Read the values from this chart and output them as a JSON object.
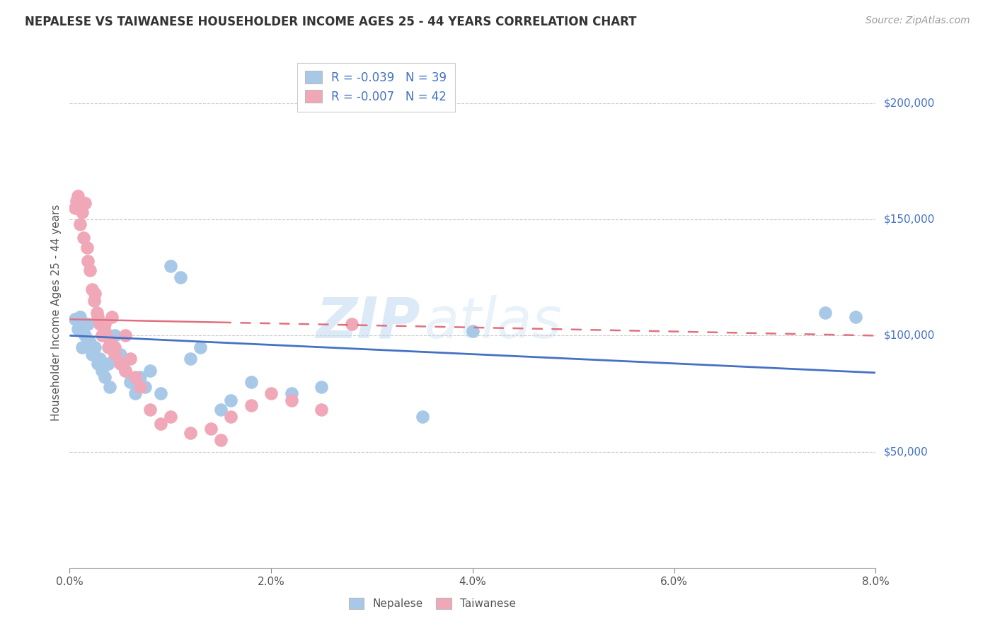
{
  "title": "NEPALESE VS TAIWANESE HOUSEHOLDER INCOME AGES 25 - 44 YEARS CORRELATION CHART",
  "source": "Source: ZipAtlas.com",
  "xlabel_ticks": [
    "0.0%",
    "2.0%",
    "4.0%",
    "6.0%",
    "8.0%"
  ],
  "xlabel_vals": [
    0.0,
    2.0,
    4.0,
    6.0,
    8.0
  ],
  "ylabel_ticks": [
    "$50,000",
    "$100,000",
    "$150,000",
    "$200,000"
  ],
  "ylabel_vals": [
    50000,
    100000,
    150000,
    200000
  ],
  "xlim": [
    0.0,
    8.0
  ],
  "ylim": [
    0,
    220000
  ],
  "nepalese_R": "-0.039",
  "nepalese_N": "39",
  "taiwanese_R": "-0.007",
  "taiwanese_N": "42",
  "nepalese_color": "#a8c8e8",
  "taiwanese_color": "#f0a8b8",
  "nepalese_line_color": "#4472c4",
  "taiwanese_line_color": "#e07080",
  "legend_label_nepalese": "Nepalese",
  "legend_label_taiwanese": "Taiwanese",
  "watermark_zip": "ZIP",
  "watermark_atlas": "atlas",
  "background_color": "#ffffff",
  "ylabel": "Householder Income Ages 25 - 44 years",
  "nepalese_x": [
    0.05,
    0.08,
    0.1,
    0.12,
    0.15,
    0.18,
    0.2,
    0.22,
    0.25,
    0.28,
    0.3,
    0.32,
    0.35,
    0.38,
    0.4,
    0.42,
    0.45,
    0.5,
    0.52,
    0.55,
    0.6,
    0.65,
    0.7,
    0.75,
    0.8,
    0.9,
    1.0,
    1.1,
    1.2,
    1.3,
    1.5,
    1.6,
    1.8,
    2.2,
    2.5,
    3.5,
    4.0,
    7.5,
    7.8
  ],
  "nepalese_y": [
    107000,
    103000,
    108000,
    95000,
    100000,
    105000,
    97000,
    92000,
    95000,
    88000,
    90000,
    85000,
    82000,
    88000,
    78000,
    95000,
    100000,
    92000,
    88000,
    85000,
    80000,
    75000,
    82000,
    78000,
    85000,
    75000,
    130000,
    125000,
    90000,
    95000,
    68000,
    72000,
    80000,
    75000,
    78000,
    65000,
    102000,
    110000,
    108000
  ],
  "taiwanese_x": [
    0.05,
    0.07,
    0.08,
    0.1,
    0.12,
    0.14,
    0.15,
    0.17,
    0.18,
    0.2,
    0.22,
    0.24,
    0.25,
    0.27,
    0.28,
    0.3,
    0.32,
    0.35,
    0.38,
    0.4,
    0.42,
    0.45,
    0.5,
    0.55,
    0.6,
    0.65,
    0.7,
    0.8,
    0.9,
    1.0,
    1.2,
    1.4,
    1.5,
    1.6,
    1.8,
    2.0,
    2.2,
    2.5,
    0.35,
    0.45,
    0.55,
    2.8
  ],
  "taiwanese_y": [
    155000,
    158000,
    160000,
    148000,
    153000,
    142000,
    157000,
    138000,
    132000,
    128000,
    120000,
    115000,
    118000,
    110000,
    108000,
    105000,
    100000,
    102000,
    95000,
    98000,
    108000,
    92000,
    88000,
    85000,
    90000,
    82000,
    78000,
    68000,
    62000,
    65000,
    58000,
    60000,
    55000,
    65000,
    70000,
    75000,
    72000,
    68000,
    105000,
    95000,
    100000,
    105000
  ],
  "nep_line_x0": 0.0,
  "nep_line_x1": 8.0,
  "nep_line_y0": 100000,
  "nep_line_y1": 84000,
  "tai_line_x0": 0.0,
  "tai_line_x1": 8.0,
  "tai_line_y0": 107000,
  "tai_line_y1": 100000
}
